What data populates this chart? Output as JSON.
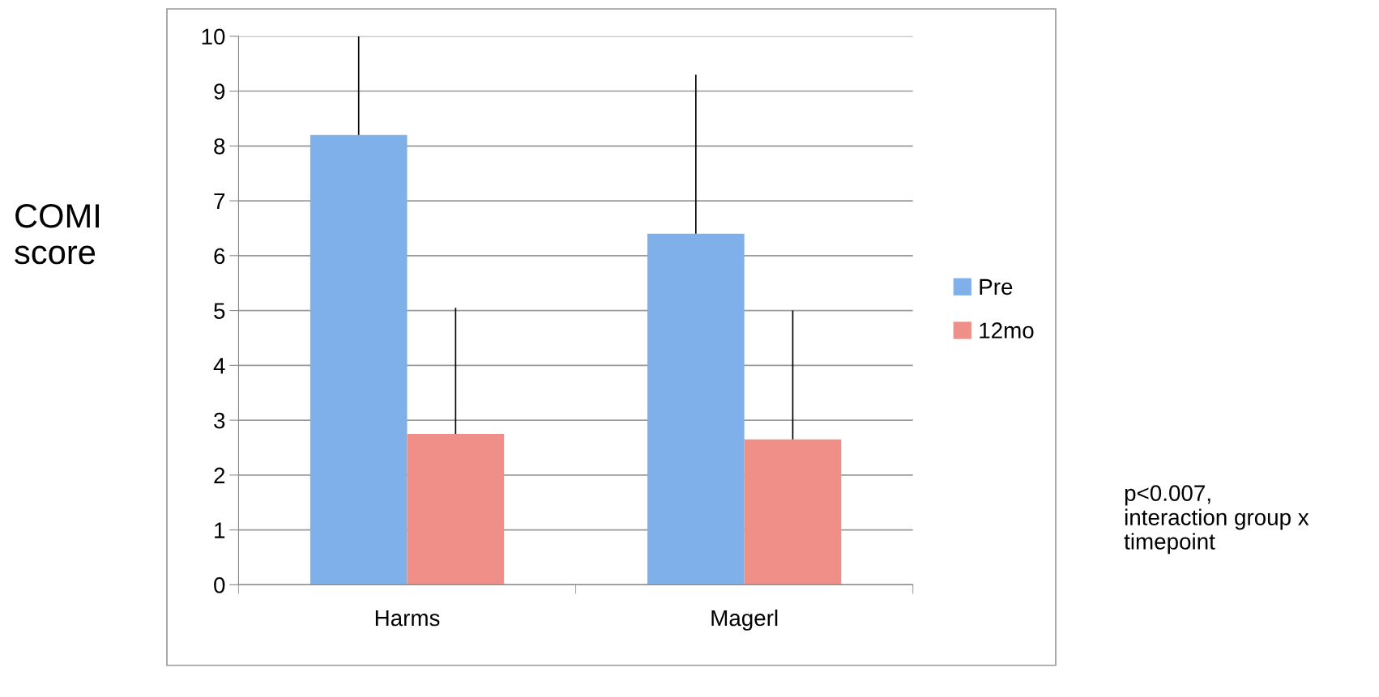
{
  "chart_data": {
    "type": "bar",
    "ylabel": "COMI\nscore",
    "categories": [
      "Harms",
      "Magerl"
    ],
    "series": [
      {
        "name": "Pre",
        "color": "#7fb0ea",
        "values": [
          8.2,
          6.4
        ],
        "errors": [
          [
            8.2,
            10
          ],
          [
            6.4,
            9.3
          ]
        ]
      },
      {
        "name": "12mo",
        "color": "#ef8f88",
        "values": [
          2.75,
          2.65
        ],
        "errors": [
          [
            2.75,
            5.05
          ],
          [
            2.65,
            5.0
          ]
        ]
      }
    ],
    "ylim": [
      0,
      10
    ],
    "yticks": [
      0,
      1,
      2,
      3,
      4,
      5,
      6,
      7,
      8,
      9,
      10
    ],
    "grid": "y",
    "legend": "right",
    "annotations": [
      "p<0.007,\ninteraction group x\ntimepoint"
    ]
  }
}
